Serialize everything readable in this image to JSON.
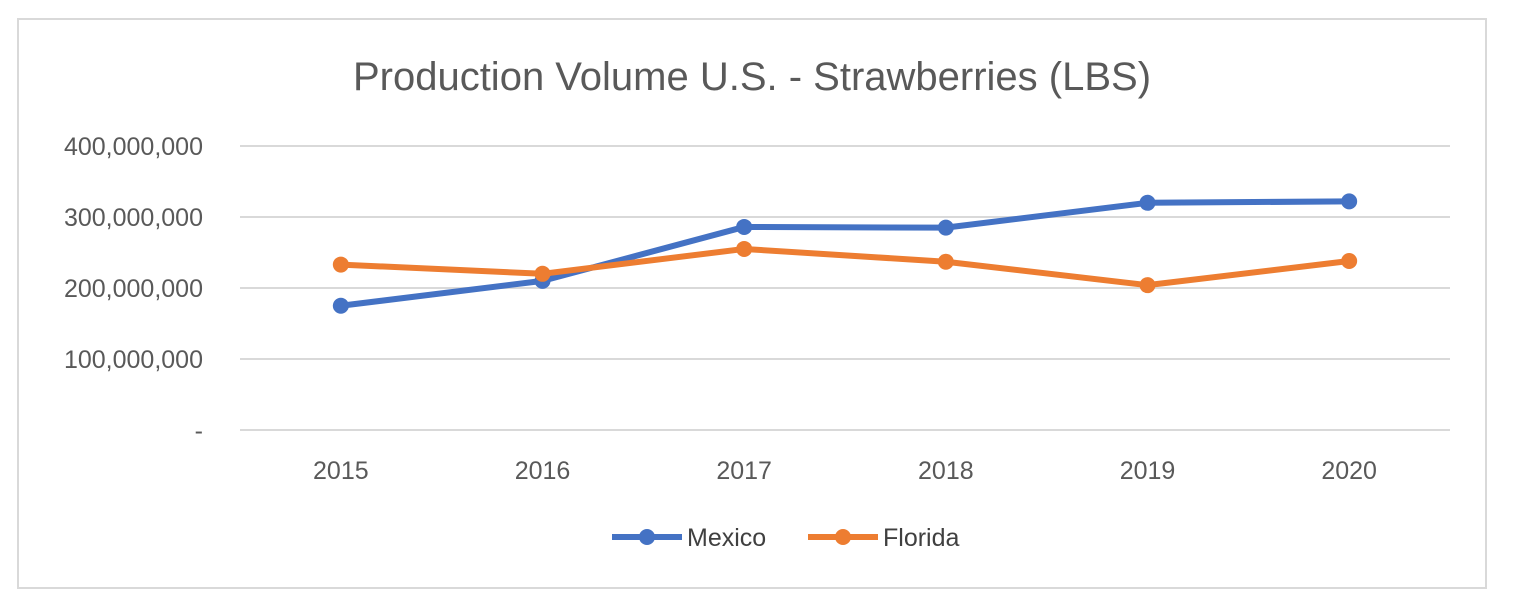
{
  "chart_data": {
    "type": "line",
    "title": "Production Volume U.S. - Strawberries (LBS)",
    "xlabel": "",
    "ylabel": "",
    "categories": [
      "2015",
      "2016",
      "2017",
      "2018",
      "2019",
      "2020"
    ],
    "y_ticks": [
      0,
      100000000,
      200000000,
      300000000,
      400000000
    ],
    "y_tick_labels": [
      "-",
      "100,000,000",
      "200,000,000",
      "300,000,000",
      "400,000,000"
    ],
    "ylim": [
      0,
      400000000
    ],
    "grid": true,
    "legend_position": "bottom",
    "series": [
      {
        "name": "Mexico",
        "color": "#4472c4",
        "values": [
          175000000,
          210000000,
          286000000,
          285000000,
          320000000,
          322000000
        ]
      },
      {
        "name": "Florida",
        "color": "#ed7d31",
        "values": [
          233000000,
          220000000,
          255000000,
          237000000,
          204000000,
          238000000
        ]
      }
    ]
  }
}
